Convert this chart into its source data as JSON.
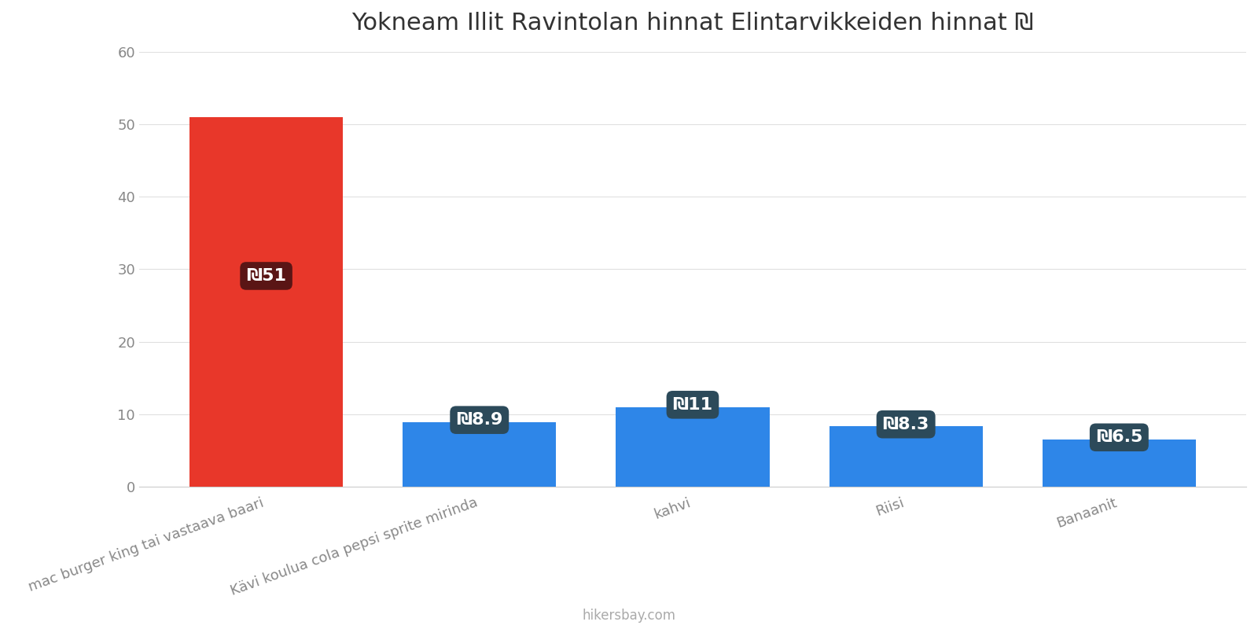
{
  "title": "Yokneam Illit Ravintolan hinnat Elintarvikkeiden hinnat ₪",
  "categories": [
    "mac burger king tai vastaava baari",
    "Kävi koulua cola pepsi sprite mirinda",
    "kahvi",
    "Riisi",
    "Banaanit"
  ],
  "values": [
    51,
    8.9,
    11,
    8.3,
    6.5
  ],
  "bar_colors": [
    "#e8372a",
    "#2e86e8",
    "#2e86e8",
    "#2e86e8",
    "#2e86e8"
  ],
  "label_texts": [
    "₪51",
    "₪8.9",
    "₪11",
    "₪8.3",
    "₪6.5"
  ],
  "ylim": [
    0,
    60
  ],
  "yticks": [
    0,
    10,
    20,
    30,
    40,
    50,
    60
  ],
  "background_color": "#ffffff",
  "label_bg_color_red": "#5a1515",
  "label_bg_color_blue": "#2c4a5a",
  "label_text_color": "#ffffff",
  "footer_text": "hikersbay.com",
  "title_fontsize": 22,
  "tick_fontsize": 13,
  "label_fontsize": 16,
  "bar_width": 0.72
}
